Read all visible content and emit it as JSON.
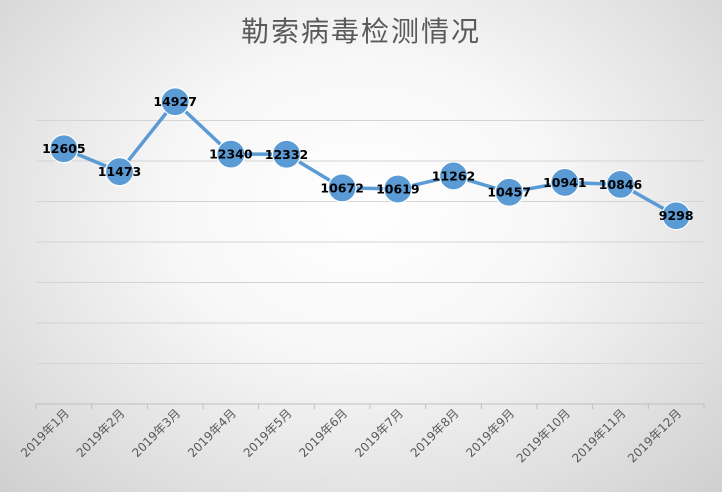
{
  "chart_data": {
    "type": "line",
    "title": "勒索病毒检测情况",
    "categories": [
      "2019年1月",
      "2019年2月",
      "2019年3月",
      "2019年4月",
      "2019年5月",
      "2019年6月",
      "2019年7月",
      "2019年8月",
      "2019年9月",
      "2019年10月",
      "2019年11月",
      "2019年12月"
    ],
    "series": [
      {
        "values": [
          12605,
          11473,
          14927,
          12340,
          12332,
          10672,
          10619,
          11262,
          10457,
          10941,
          10846,
          9298
        ]
      }
    ],
    "ylim": [
      0,
      16000
    ],
    "y_gridlines": [
      2000,
      4000,
      6000,
      8000,
      10000,
      12000,
      14000
    ],
    "y_tick_labels_visible": false,
    "grid": true,
    "legend": "none",
    "colors": {
      "line": "#5b9bd5",
      "marker": "#5b9bd5",
      "grid": "#d4d4d4",
      "axis": "#bfbfbf",
      "label": "#000000",
      "title": "#5a5a5a"
    }
  }
}
